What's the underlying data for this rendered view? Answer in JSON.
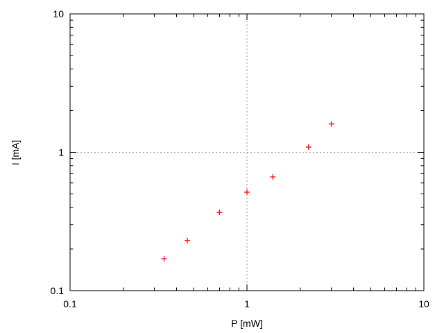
{
  "chart_data": {
    "type": "scatter",
    "title": "",
    "xlabel": "P [mW]",
    "ylabel": "I [mA]",
    "xscale": "log",
    "yscale": "log",
    "xlim": [
      0.1,
      10
    ],
    "ylim": [
      0.1,
      10
    ],
    "xticks": [
      {
        "value": 0.1,
        "label": "0.1"
      },
      {
        "value": 1,
        "label": "1"
      },
      {
        "value": 10,
        "label": "10"
      }
    ],
    "yticks": [
      {
        "value": 0.1,
        "label": "0.1"
      },
      {
        "value": 1,
        "label": "1"
      },
      {
        "value": 10,
        "label": "10"
      }
    ],
    "grid": true,
    "marker": "plus",
    "color": "#ff0000",
    "series": [
      {
        "x": [
          0.34,
          0.46,
          0.7,
          1.0,
          1.4,
          2.23,
          3.01
        ],
        "y": [
          0.17,
          0.23,
          0.368,
          0.515,
          0.664,
          1.09,
          1.6
        ]
      }
    ]
  }
}
